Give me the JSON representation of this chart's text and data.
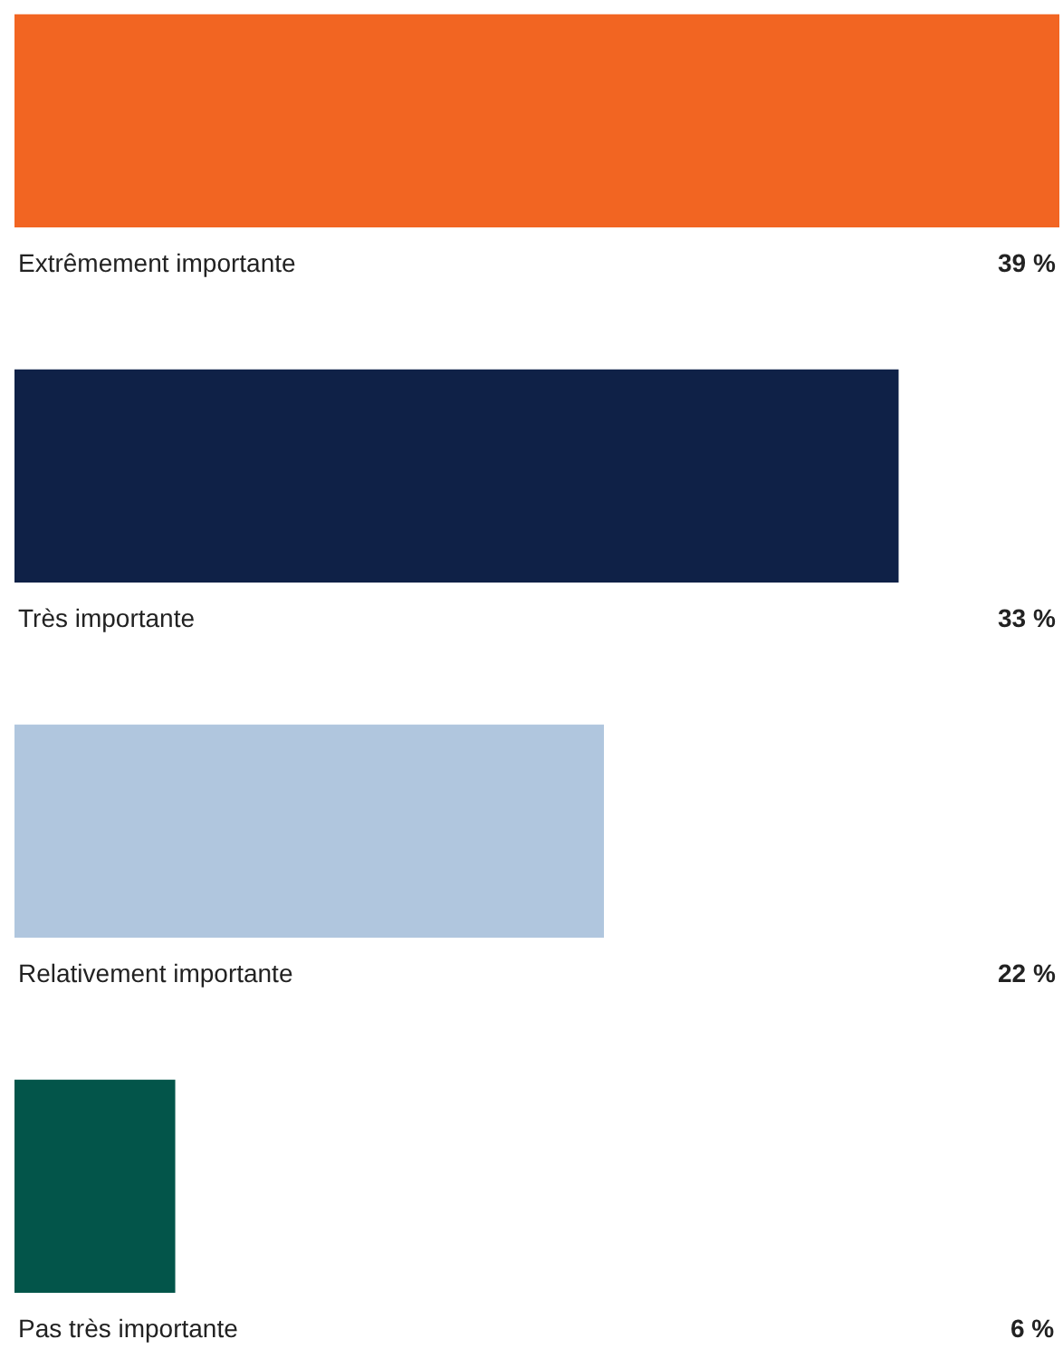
{
  "chart_data": {
    "type": "bar",
    "orientation": "horizontal",
    "categories": [
      "Extrêmement importante",
      "Très importante",
      "Relativement importante",
      "Pas très importante"
    ],
    "values": [
      39,
      33,
      22,
      6
    ],
    "colors": [
      "#f26522",
      "#0f2147",
      "#b0c6de",
      "#03554a"
    ],
    "value_labels": [
      "39 %",
      "33 %",
      "22 %",
      "6 %"
    ],
    "xlim": [
      0,
      39
    ],
    "tick_labels": false,
    "legend": false
  }
}
